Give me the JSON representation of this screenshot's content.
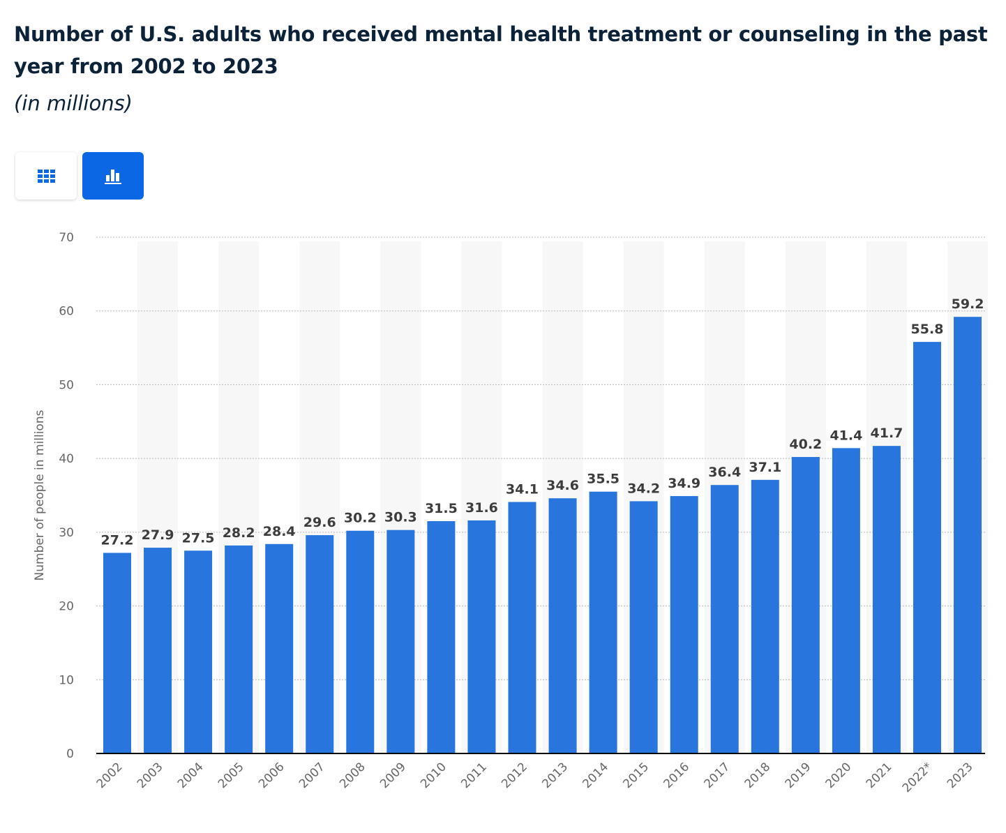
{
  "header": {
    "title": "Number of U.S. adults who received mental health treatment or counseling in the past year from 2002 to 2023",
    "subtitle": "(in millions)"
  },
  "view_toggle": {
    "table_icon": "table-grid-icon",
    "chart_icon": "bar-chart-icon",
    "active": "chart"
  },
  "colors": {
    "bar": "#2876dd",
    "active_button": "#0b67e4",
    "inactive_icon": "#0b67e4",
    "title": "#0b2239"
  },
  "chart_data": {
    "type": "bar",
    "categories": [
      "2002",
      "2003",
      "2004",
      "2005",
      "2006",
      "2007",
      "2008",
      "2009",
      "2010",
      "2011",
      "2012",
      "2013",
      "2014",
      "2015",
      "2016",
      "2017",
      "2018",
      "2019",
      "2020",
      "2021",
      "2022*",
      "2023"
    ],
    "values": [
      27.2,
      27.9,
      27.5,
      28.2,
      28.4,
      29.6,
      30.2,
      30.3,
      31.5,
      31.6,
      34.1,
      34.6,
      35.5,
      34.2,
      34.9,
      36.4,
      37.1,
      40.2,
      41.4,
      41.7,
      55.8,
      59.2
    ],
    "data_labels": [
      "27.2",
      "27.9",
      "27.5",
      "28.2",
      "28.4",
      "29.6",
      "30.2",
      "30.3",
      "31.5",
      "31.6",
      "34.1",
      "34.6",
      "35.5",
      "34.2",
      "34.9",
      "36.4",
      "37.1",
      "40.2",
      "41.4",
      "41.7",
      "55.8",
      "59.2"
    ],
    "ylabel": "Number of people in millions",
    "xlabel": "",
    "ylim": [
      0,
      70
    ],
    "yticks": [
      0,
      10,
      20,
      30,
      40,
      50,
      60,
      70
    ],
    "ytick_labels": [
      "0",
      "10",
      "20",
      "30",
      "40",
      "50",
      "60",
      "70"
    ],
    "grid": true,
    "legend": "none"
  }
}
